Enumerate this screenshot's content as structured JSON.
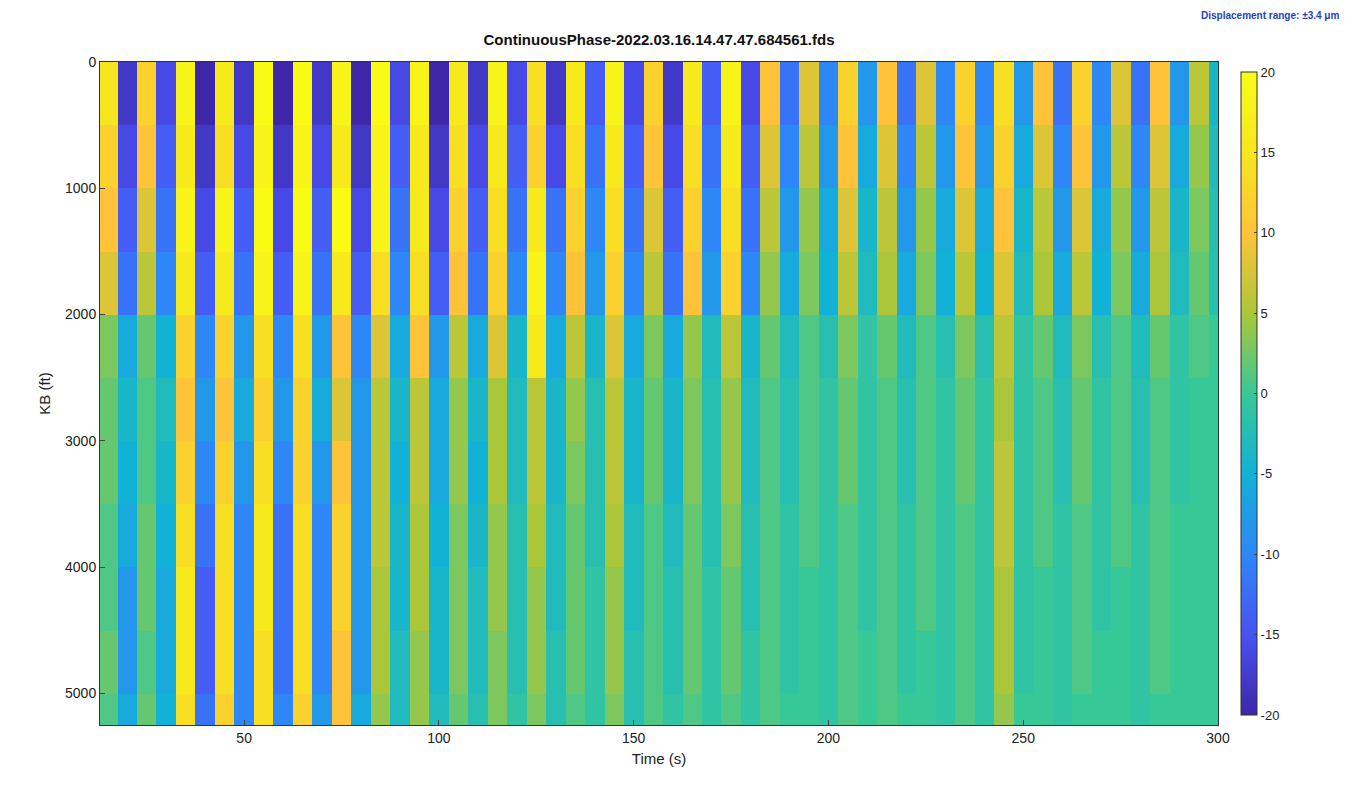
{
  "chart_data": {
    "type": "heatmap",
    "title": "ContinuousPhase-2022.03.16.14.47.47.684561.fds",
    "annotation": "Displacement range: ±3.4 μm",
    "x_label": "Time (s)",
    "y_label": "KB (ft)",
    "xlim": [
      13,
      300
    ],
    "xticks": [
      50,
      100,
      150,
      200,
      250,
      300
    ],
    "ylim": [
      5250,
      0
    ],
    "yticks": [
      0,
      1000,
      2000,
      3000,
      4000,
      5000
    ],
    "colorbar_range": [
      -20,
      20
    ],
    "colorbar_ticks": [
      -20,
      -15,
      -10,
      -5,
      0,
      5,
      10,
      15,
      20
    ],
    "x": [
      15,
      20,
      25,
      30,
      35,
      40,
      45,
      50,
      55,
      60,
      65,
      70,
      75,
      80,
      85,
      90,
      95,
      100,
      105,
      110,
      115,
      120,
      125,
      130,
      135,
      140,
      145,
      150,
      155,
      160,
      165,
      170,
      175,
      180,
      185,
      190,
      195,
      200,
      205,
      210,
      215,
      220,
      225,
      230,
      235,
      240,
      245,
      250,
      255,
      260,
      265,
      270,
      275,
      280,
      285,
      290,
      295,
      300
    ],
    "y": [
      250,
      750,
      1250,
      1750,
      2250,
      2750,
      3250,
      3750,
      4250,
      4750,
      5250
    ],
    "cells": [
      [
        15,
        -18,
        12,
        -16,
        18,
        -20,
        16,
        -18,
        20,
        -20,
        20,
        -18,
        18,
        -20,
        20,
        -16,
        18,
        -20,
        16,
        -18,
        18,
        -16,
        14,
        -18,
        16,
        -14,
        18,
        -16,
        12,
        -18,
        16,
        -14,
        18,
        -16,
        10,
        -12,
        8,
        -10,
        12,
        -8,
        10,
        -12,
        8,
        -10,
        12,
        -10,
        14,
        -8,
        10,
        -12,
        12,
        -10,
        8,
        -12,
        10,
        -8,
        6,
        -4
      ],
      [
        12,
        -16,
        10,
        -14,
        16,
        -18,
        14,
        -16,
        18,
        -18,
        18,
        -16,
        16,
        -18,
        18,
        -14,
        16,
        -18,
        14,
        -16,
        16,
        -14,
        12,
        -16,
        14,
        -12,
        16,
        -14,
        10,
        -16,
        14,
        -12,
        16,
        -14,
        8,
        -10,
        6,
        -8,
        10,
        -6,
        8,
        -10,
        6,
        -8,
        10,
        -8,
        12,
        -6,
        8,
        -10,
        10,
        -8,
        6,
        -10,
        8,
        -6,
        4,
        -3
      ],
      [
        10,
        -14,
        8,
        -12,
        18,
        -16,
        18,
        -14,
        20,
        -16,
        20,
        -14,
        20,
        -16,
        18,
        -12,
        16,
        -16,
        12,
        -14,
        14,
        -12,
        16,
        -12,
        12,
        -10,
        14,
        -12,
        8,
        -14,
        12,
        -10,
        14,
        -12,
        6,
        -8,
        4,
        -6,
        8,
        -4,
        6,
        -8,
        4,
        -6,
        8,
        -6,
        10,
        -4,
        6,
        -8,
        8,
        -6,
        4,
        -8,
        6,
        -4,
        3,
        -2
      ],
      [
        8,
        -12,
        6,
        -10,
        16,
        -14,
        16,
        -12,
        18,
        -14,
        18,
        -12,
        16,
        -14,
        14,
        -10,
        14,
        -14,
        10,
        -12,
        12,
        -10,
        18,
        -10,
        10,
        -8,
        12,
        -10,
        6,
        -12,
        10,
        -8,
        12,
        -10,
        4,
        -6,
        3,
        -5,
        6,
        -3,
        5,
        -6,
        3,
        -5,
        6,
        -5,
        8,
        -3,
        5,
        -6,
        6,
        -5,
        3,
        -6,
        5,
        -3,
        2,
        -2
      ],
      [
        3,
        -6,
        2,
        -5,
        12,
        -10,
        12,
        -8,
        14,
        -10,
        14,
        -8,
        10,
        -10,
        8,
        -6,
        10,
        -8,
        6,
        -6,
        8,
        -4,
        16,
        -6,
        6,
        -4,
        8,
        -6,
        3,
        -6,
        4,
        -3,
        6,
        -4,
        2,
        -3,
        1,
        -2,
        3,
        -1,
        2,
        -3,
        1,
        -2,
        3,
        -2,
        6,
        -1,
        2,
        -3,
        3,
        -2,
        1,
        -3,
        2,
        -1,
        1,
        0
      ],
      [
        2,
        -4,
        1,
        -3,
        10,
        -8,
        10,
        -6,
        12,
        -8,
        12,
        -6,
        8,
        -8,
        6,
        -4,
        6,
        -6,
        4,
        -4,
        5,
        -3,
        6,
        -4,
        4,
        -2,
        6,
        -4,
        2,
        -4,
        3,
        -2,
        4,
        -3,
        1,
        -2,
        1,
        -1,
        2,
        -1,
        1,
        -2,
        1,
        -1,
        2,
        -1,
        5,
        -1,
        1,
        -2,
        2,
        -1,
        1,
        -2,
        1,
        -1,
        0,
        0
      ],
      [
        2,
        -5,
        1,
        -4,
        12,
        -10,
        12,
        -8,
        14,
        -10,
        12,
        -8,
        10,
        -8,
        6,
        -5,
        6,
        -6,
        4,
        -5,
        5,
        -3,
        6,
        -4,
        3,
        -2,
        6,
        -4,
        2,
        -4,
        3,
        -2,
        4,
        -3,
        1,
        -2,
        1,
        -1,
        2,
        -1,
        1,
        -2,
        1,
        -1,
        2,
        -1,
        6,
        -1,
        1,
        -2,
        2,
        -1,
        1,
        -2,
        1,
        -1,
        0,
        0
      ],
      [
        1,
        -6,
        2,
        -5,
        14,
        -12,
        14,
        -10,
        16,
        -12,
        14,
        -10,
        12,
        -8,
        6,
        -4,
        5,
        -5,
        3,
        -4,
        4,
        -2,
        5,
        -3,
        2,
        -2,
        5,
        -3,
        1,
        -3,
        2,
        -2,
        3,
        -2,
        1,
        -1,
        1,
        -1,
        1,
        -1,
        1,
        -1,
        1,
        -1,
        1,
        -1,
        6,
        -1,
        1,
        -1,
        1,
        -1,
        1,
        -1,
        1,
        0,
        0,
        0
      ],
      [
        1,
        -8,
        2,
        -6,
        16,
        -14,
        14,
        -10,
        16,
        -12,
        14,
        -10,
        12,
        -8,
        5,
        -4,
        5,
        -4,
        3,
        -3,
        4,
        -2,
        4,
        -3,
        2,
        -1,
        4,
        -3,
        1,
        -2,
        2,
        -1,
        2,
        -2,
        1,
        -1,
        0,
        -1,
        1,
        -1,
        1,
        -1,
        1,
        -1,
        1,
        -1,
        5,
        -1,
        0,
        -1,
        1,
        -1,
        0,
        -1,
        1,
        0,
        0,
        0
      ],
      [
        2,
        -8,
        1,
        -6,
        16,
        -14,
        14,
        -10,
        14,
        -12,
        14,
        -10,
        10,
        -8,
        5,
        -3,
        4,
        -4,
        3,
        -3,
        3,
        -2,
        4,
        -2,
        2,
        -1,
        4,
        -2,
        1,
        -2,
        2,
        -1,
        2,
        -1,
        1,
        -1,
        0,
        -1,
        1,
        0,
        1,
        -1,
        0,
        -1,
        1,
        -1,
        5,
        -1,
        0,
        -1,
        1,
        0,
        0,
        -1,
        1,
        0,
        0,
        0
      ],
      [
        1,
        -6,
        2,
        -5,
        14,
        -12,
        12,
        -10,
        14,
        -10,
        12,
        -8,
        10,
        -6,
        4,
        -3,
        4,
        -3,
        2,
        -2,
        3,
        -1,
        3,
        -2,
        1,
        -1,
        3,
        -2,
        1,
        -1,
        1,
        -1,
        1,
        -1,
        1,
        0,
        0,
        -1,
        1,
        0,
        1,
        0,
        0,
        -1,
        1,
        -1,
        4,
        0,
        0,
        -1,
        0,
        0,
        0,
        -1,
        0,
        0,
        0,
        0
      ]
    ]
  }
}
